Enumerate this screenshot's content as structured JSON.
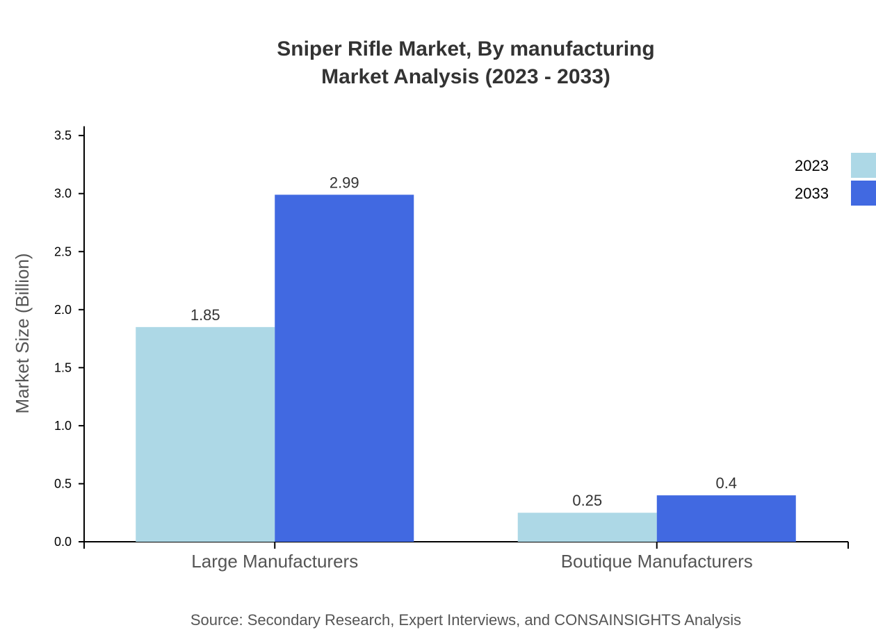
{
  "chart_data": {
    "type": "bar",
    "title": [
      "Sniper Rifle Market, By manufacturing",
      "Market Analysis (2023 - 2033)"
    ],
    "xlabel": "",
    "ylabel": "Market Size (Billion)",
    "categories": [
      "Large Manufacturers",
      "Boutique Manufacturers"
    ],
    "series": [
      {
        "name": "2023",
        "values": [
          1.85,
          0.25
        ],
        "color": "#ADD8E6",
        "labels": [
          "1.85",
          "0.25"
        ]
      },
      {
        "name": "2033",
        "values": [
          2.99,
          0.4
        ],
        "color": "#4169E1",
        "labels": [
          "2.99",
          "0.4"
        ]
      }
    ],
    "ylim": [
      0,
      3.58
    ],
    "yticks": [
      "0.0",
      "0.5",
      "1.0",
      "1.5",
      "2.0",
      "2.5",
      "3.0",
      "3.5"
    ],
    "grid": false,
    "legend_position": "top-right",
    "source": "Source: Secondary Research, Expert Interviews, and CONSAINSIGHTS Analysis"
  }
}
